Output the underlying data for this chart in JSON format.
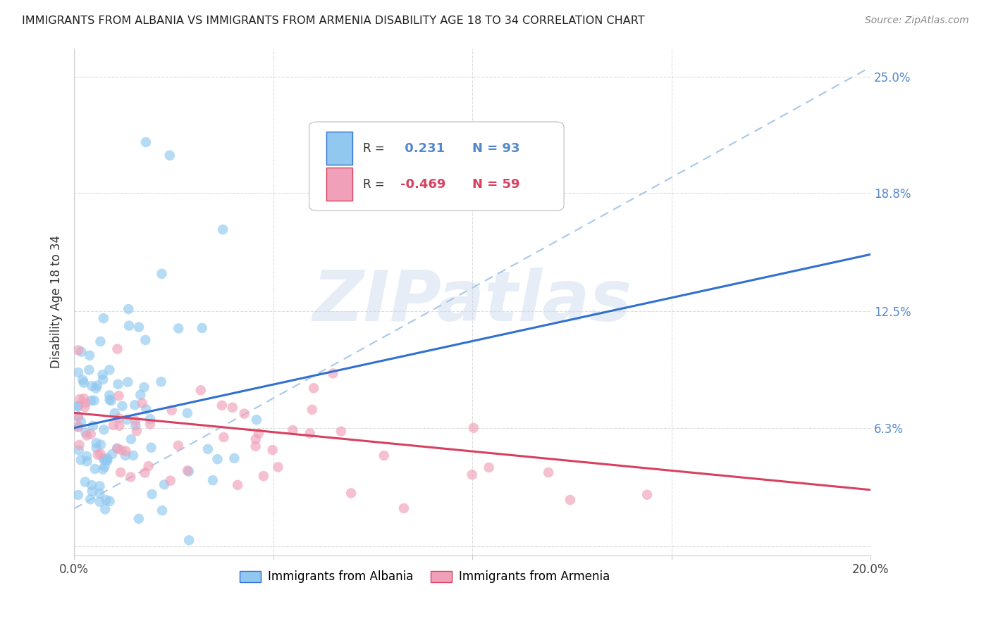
{
  "title": "IMMIGRANTS FROM ALBANIA VS IMMIGRANTS FROM ARMENIA DISABILITY AGE 18 TO 34 CORRELATION CHART",
  "source": "Source: ZipAtlas.com",
  "ylabel": "Disability Age 18 to 34",
  "xlim": [
    0.0,
    0.2
  ],
  "ylim": [
    -0.005,
    0.265
  ],
  "xticks": [
    0.0,
    0.05,
    0.1,
    0.15,
    0.2
  ],
  "xticklabels": [
    "0.0%",
    "",
    "",
    "",
    "20.0%"
  ],
  "ytick_vals": [
    0.0,
    0.063,
    0.125,
    0.188,
    0.25
  ],
  "ytick_labels": [
    "",
    "6.3%",
    "12.5%",
    "18.8%",
    "25.0%"
  ],
  "albania_color": "#90C8F0",
  "armenia_color": "#F0A0B8",
  "albania_line_color": "#3070D0",
  "armenia_line_color": "#D84060",
  "trendline_dash_color": "#A8C8E8",
  "legend_albania_label": "Immigrants from Albania",
  "legend_armenia_label": "Immigrants from Armenia",
  "R_albania": 0.231,
  "N_albania": 93,
  "R_armenia": -0.469,
  "N_armenia": 59,
  "watermark": "ZIPatlas",
  "background_color": "#FFFFFF",
  "grid_color": "#DDDDDD",
  "title_color": "#222222",
  "source_color": "#888888",
  "right_axis_color": "#5588CC"
}
